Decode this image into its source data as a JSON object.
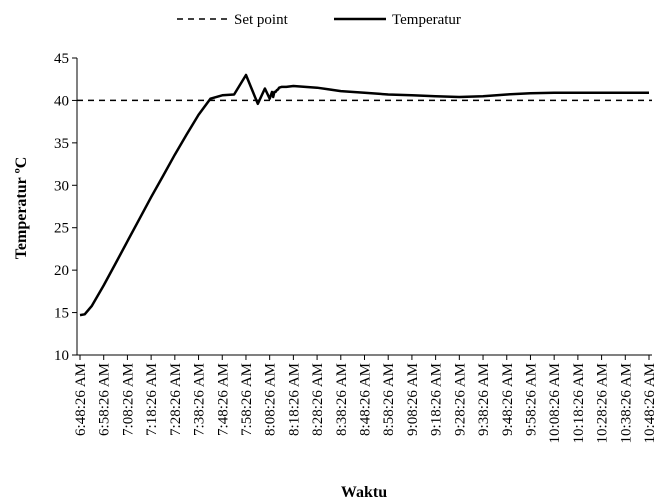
{
  "chart_data": {
    "type": "line",
    "title": "",
    "xlabel": "Waktu",
    "ylabel": "Temperatur ºC",
    "ylim": [
      10,
      45
    ],
    "yticks": [
      10,
      15,
      20,
      25,
      30,
      35,
      40,
      45
    ],
    "x_tick_labels": [
      "6:48:26 AM",
      "6:58:26 AM",
      "7:08:26 AM",
      "7:18:26 AM",
      "7:28:26 AM",
      "7:38:26 AM",
      "7:48:26 AM",
      "7:58:26 AM",
      "8:08:26 AM",
      "8:18:26 AM",
      "8:28:26 AM",
      "8:38:26 AM",
      "8:48:26 AM",
      "8:58:26 AM",
      "9:08:26 AM",
      "9:18:26 AM",
      "9:28:26 AM",
      "9:38:26 AM",
      "9:48:26 AM",
      "9:58:26 AM",
      "10:08:26 AM",
      "10:18:26 AM",
      "10:28:26 AM",
      "10:38:26 AM",
      "10:48:26 AM"
    ],
    "grid": false,
    "legend_position": "top",
    "series": [
      {
        "name": "Set point",
        "style": "dashed",
        "color": "#000000",
        "x": [
          "6:48:26 AM",
          "10:48:26 AM"
        ],
        "y": [
          40,
          40
        ]
      },
      {
        "name": "Temperatur",
        "style": "solid",
        "color": "#000000",
        "x": [
          "6:48:26 AM",
          "6:50:26 AM",
          "6:53:26 AM",
          "6:58:26 AM",
          "7:03:26 AM",
          "7:08:26 AM",
          "7:13:26 AM",
          "7:18:26 AM",
          "7:23:26 AM",
          "7:28:26 AM",
          "7:33:26 AM",
          "7:38:26 AM",
          "7:43:26 AM",
          "7:48:26 AM",
          "7:53:26 AM",
          "7:58:26 AM",
          "8:03:26 AM",
          "8:06:26 AM",
          "8:08:26 AM",
          "8:09:26 AM",
          "8:09:56 AM",
          "8:10:26 AM",
          "8:10:56 AM",
          "8:11:26 AM",
          "8:11:56 AM",
          "8:12:26 AM",
          "8:13:26 AM",
          "8:15:26 AM",
          "8:18:26 AM",
          "8:23:26 AM",
          "8:28:26 AM",
          "8:33:26 AM",
          "8:38:26 AM",
          "8:48:26 AM",
          "8:58:26 AM",
          "9:08:26 AM",
          "9:18:26 AM",
          "9:28:26 AM",
          "9:38:26 AM",
          "9:48:26 AM",
          "9:58:26 AM",
          "10:08:26 AM",
          "10:18:26 AM",
          "10:28:26 AM",
          "10:38:26 AM",
          "10:43:26 AM",
          "10:48:26 AM"
        ],
        "y": [
          14.7,
          14.8,
          15.8,
          18.2,
          20.8,
          23.4,
          26.0,
          28.6,
          31.1,
          33.6,
          36.0,
          38.3,
          40.2,
          40.6,
          40.7,
          43.0,
          39.6,
          41.4,
          40.2,
          41.0,
          40.4,
          41.0,
          41.0,
          41.2,
          41.3,
          41.5,
          41.6,
          41.6,
          41.7,
          41.6,
          41.5,
          41.3,
          41.1,
          40.9,
          40.7,
          40.6,
          40.5,
          40.4,
          40.5,
          40.7,
          40.85,
          40.9,
          40.9,
          40.9,
          40.9,
          40.9,
          40.9
        ]
      }
    ]
  }
}
